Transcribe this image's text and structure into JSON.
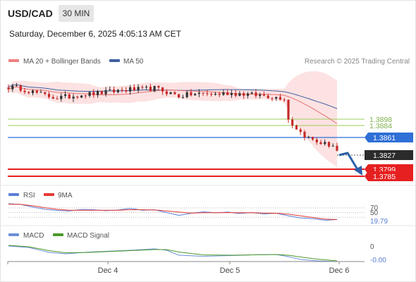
{
  "header": {
    "symbol": "USD/CAD",
    "timeframe": "30 MIN",
    "datetime": "Saturday, December 6, 2025 4:05:13 AM CET"
  },
  "legend": {
    "ma20_label": "MA 20 + Bollinger Bands",
    "ma50_label": "MA 50",
    "credit": "Research © 2025 Trading Central"
  },
  "colors": {
    "candle_up": "#333333",
    "candle_down": "#c62828",
    "ma20": "#e57373",
    "ma50": "#3f5f9f",
    "bollinger_fill": "#fbd6d6",
    "green_level": "#9dcd5c",
    "blue_level": "#2f6fd6",
    "red_level": "#e62020",
    "arrow": "#2d5fa8",
    "rsi": "#5b7fd6",
    "rsi_ma": "#e53935",
    "macd": "#6b8fd9",
    "macd_signal": "#4c9a2a"
  },
  "chart_data": [
    {
      "type": "candlestick",
      "panel": "price",
      "x_ticks": [
        "Dec 4",
        "Dec 5",
        "Dec 6"
      ],
      "ylim": [
        1.3772,
        1.3962
      ],
      "indicators": [
        "MA 20 + Bollinger Bands",
        "MA 50"
      ],
      "close_points": [
        [
          0,
          1.3934
        ],
        [
          3,
          1.3932
        ],
        [
          6,
          1.3926
        ],
        [
          9,
          1.392
        ],
        [
          12,
          1.3916
        ],
        [
          15,
          1.3918
        ],
        [
          18,
          1.3922
        ],
        [
          21,
          1.3923
        ],
        [
          24,
          1.3925
        ],
        [
          27,
          1.3928
        ],
        [
          30,
          1.393
        ],
        [
          33,
          1.393
        ],
        [
          36,
          1.3932
        ],
        [
          39,
          1.3926
        ],
        [
          42,
          1.3919
        ],
        [
          45,
          1.3922
        ],
        [
          48,
          1.3923
        ],
        [
          51,
          1.3922
        ],
        [
          54,
          1.3924
        ],
        [
          57,
          1.3923
        ],
        [
          60,
          1.3921
        ],
        [
          63,
          1.392
        ],
        [
          66,
          1.3917
        ],
        [
          68,
          1.3916
        ],
        [
          69,
          1.388
        ],
        [
          70,
          1.3872
        ],
        [
          72,
          1.3858
        ],
        [
          74,
          1.3848
        ],
        [
          76,
          1.3842
        ],
        [
          78,
          1.3838
        ],
        [
          80,
          1.3836
        ],
        [
          81,
          1.3827
        ]
      ],
      "levels": [
        {
          "label": "1.3898",
          "value": 1.3898,
          "kind": "resistance"
        },
        {
          "label": "1.3884",
          "value": 1.3884,
          "kind": "resistance"
        },
        {
          "label": "1.3861",
          "value": 1.3861,
          "kind": "pivot"
        },
        {
          "label": "1.3827",
          "value": 1.3827,
          "kind": "last"
        },
        {
          "label": "1.3799",
          "value": 1.3799,
          "kind": "target"
        },
        {
          "label": "1.3785",
          "value": 1.3785,
          "kind": "target"
        }
      ]
    },
    {
      "type": "line",
      "panel": "RSI",
      "legend": [
        "RSI",
        "9MA"
      ],
      "y_ticks": [
        "70",
        "50"
      ],
      "last_value": "19.79",
      "ylim": [
        0,
        100
      ],
      "series": [
        {
          "name": "RSI",
          "points": [
            [
              0,
              88
            ],
            [
              3,
              85
            ],
            [
              6,
              74
            ],
            [
              9,
              64
            ],
            [
              12,
              59
            ],
            [
              15,
              57
            ],
            [
              18,
              63
            ],
            [
              21,
              62
            ],
            [
              24,
              58
            ],
            [
              27,
              61
            ],
            [
              30,
              68
            ],
            [
              33,
              60
            ],
            [
              36,
              62
            ],
            [
              39,
              50
            ],
            [
              42,
              38
            ],
            [
              45,
              47
            ],
            [
              48,
              53
            ],
            [
              51,
              49
            ],
            [
              54,
              52
            ],
            [
              57,
              46
            ],
            [
              60,
              50
            ],
            [
              63,
              44
            ],
            [
              66,
              47
            ],
            [
              69,
              36
            ],
            [
              72,
              27
            ],
            [
              75,
              24
            ],
            [
              78,
              17
            ],
            [
              81,
              20
            ]
          ]
        },
        {
          "name": "9MA",
          "points": [
            [
              0,
              86
            ],
            [
              3,
              85
            ],
            [
              6,
              79
            ],
            [
              9,
              71
            ],
            [
              12,
              64
            ],
            [
              15,
              60
            ],
            [
              18,
              60
            ],
            [
              21,
              60
            ],
            [
              24,
              60
            ],
            [
              27,
              60
            ],
            [
              30,
              62
            ],
            [
              33,
              62
            ],
            [
              36,
              61
            ],
            [
              39,
              57
            ],
            [
              42,
              52
            ],
            [
              45,
              48
            ],
            [
              48,
              49
            ],
            [
              51,
              49
            ],
            [
              54,
              50
            ],
            [
              57,
              49
            ],
            [
              60,
              49
            ],
            [
              63,
              48
            ],
            [
              66,
              47
            ],
            [
              69,
              43
            ],
            [
              72,
              36
            ],
            [
              75,
              29
            ],
            [
              78,
              22
            ],
            [
              81,
              20
            ]
          ]
        }
      ]
    },
    {
      "type": "line",
      "panel": "MACD",
      "legend": [
        "MACD",
        "MACD Signal"
      ],
      "y_ticks": [
        "0"
      ],
      "last_value": "-0.00",
      "ylim": [
        -0.0024,
        0.0036
      ],
      "series": [
        {
          "name": "MACD",
          "points": [
            [
              0,
              0.0022
            ],
            [
              5,
              0.0018
            ],
            [
              10,
              0.0004
            ],
            [
              14,
              0.0
            ],
            [
              20,
              0.0005
            ],
            [
              26,
              0.0008
            ],
            [
              30,
              0.001
            ],
            [
              36,
              0.0014
            ],
            [
              39,
              0.001
            ],
            [
              42,
              -0.0004
            ],
            [
              48,
              -0.0007
            ],
            [
              55,
              -0.0005
            ],
            [
              60,
              -0.0003
            ],
            [
              66,
              -0.0002
            ],
            [
              69,
              -0.0008
            ],
            [
              72,
              -0.0016
            ],
            [
              76,
              -0.002
            ],
            [
              81,
              -0.0022
            ]
          ]
        },
        {
          "name": "MACD Signal",
          "points": [
            [
              0,
              0.0024
            ],
            [
              5,
              0.002
            ],
            [
              10,
              0.0009
            ],
            [
              14,
              0.0003
            ],
            [
              20,
              0.0004
            ],
            [
              26,
              0.0007
            ],
            [
              30,
              0.0009
            ],
            [
              36,
              0.0012
            ],
            [
              39,
              0.0012
            ],
            [
              42,
              0.0005
            ],
            [
              48,
              -0.0003
            ],
            [
              55,
              -0.0004
            ],
            [
              60,
              -0.0003
            ],
            [
              66,
              -0.0002
            ],
            [
              69,
              -0.0004
            ],
            [
              72,
              -0.0009
            ],
            [
              76,
              -0.0015
            ],
            [
              81,
              -0.002
            ]
          ]
        }
      ]
    }
  ]
}
